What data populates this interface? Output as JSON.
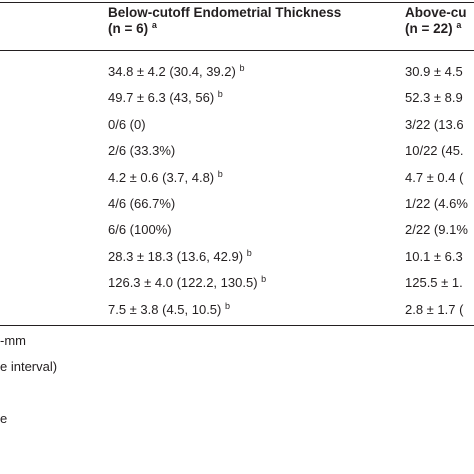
{
  "table": {
    "headers": [
      {
        "line1": "Below-cutoff Endometrial Thickness",
        "line2": "(n = 6)",
        "note": "a"
      },
      {
        "line1": "Above-cu",
        "line2": "(n = 22)",
        "note": "a"
      }
    ],
    "rows": [
      [
        {
          "text": "34.8 ± 4.2 (30.4, 39.2)",
          "note": "b"
        },
        {
          "text": "30.9 ± 4.5"
        }
      ],
      [
        {
          "text": "49.7 ± 6.3 (43, 56)",
          "note": "b"
        },
        {
          "text": "52.3 ± 8.9"
        }
      ],
      [
        {
          "text": "0/6 (0)"
        },
        {
          "text": "3/22 (13.6"
        }
      ],
      [
        {
          "text": "2/6 (33.3%)"
        },
        {
          "text": "10/22 (45."
        }
      ],
      [
        {
          "text": "4.2 ± 0.6 (3.7, 4.8)",
          "note": "b"
        },
        {
          "text": "4.7 ± 0.4 ("
        }
      ],
      [
        {
          "text": "4/6 (66.7%)"
        },
        {
          "text": "1/22 (4.6%"
        }
      ],
      [
        {
          "text": "6/6 (100%)"
        },
        {
          "text": "2/22 (9.1%"
        }
      ],
      [
        {
          "text": "28.3 ± 18.3 (13.6, 42.9)",
          "note": "b"
        },
        {
          "text": "10.1 ± 6.3"
        }
      ],
      [
        {
          "text": "126.3 ± 4.0 (122.2, 130.5)",
          "note": "b"
        },
        {
          "text": "125.5 ± 1."
        }
      ],
      [
        {
          "text": "7.5 ± 3.8 (4.5, 10.5)",
          "note": "b"
        },
        {
          "text": "2.8 ± 1.7 ("
        }
      ]
    ]
  },
  "footnotes": [
    "-mm",
    "e interval)",
    "e"
  ]
}
